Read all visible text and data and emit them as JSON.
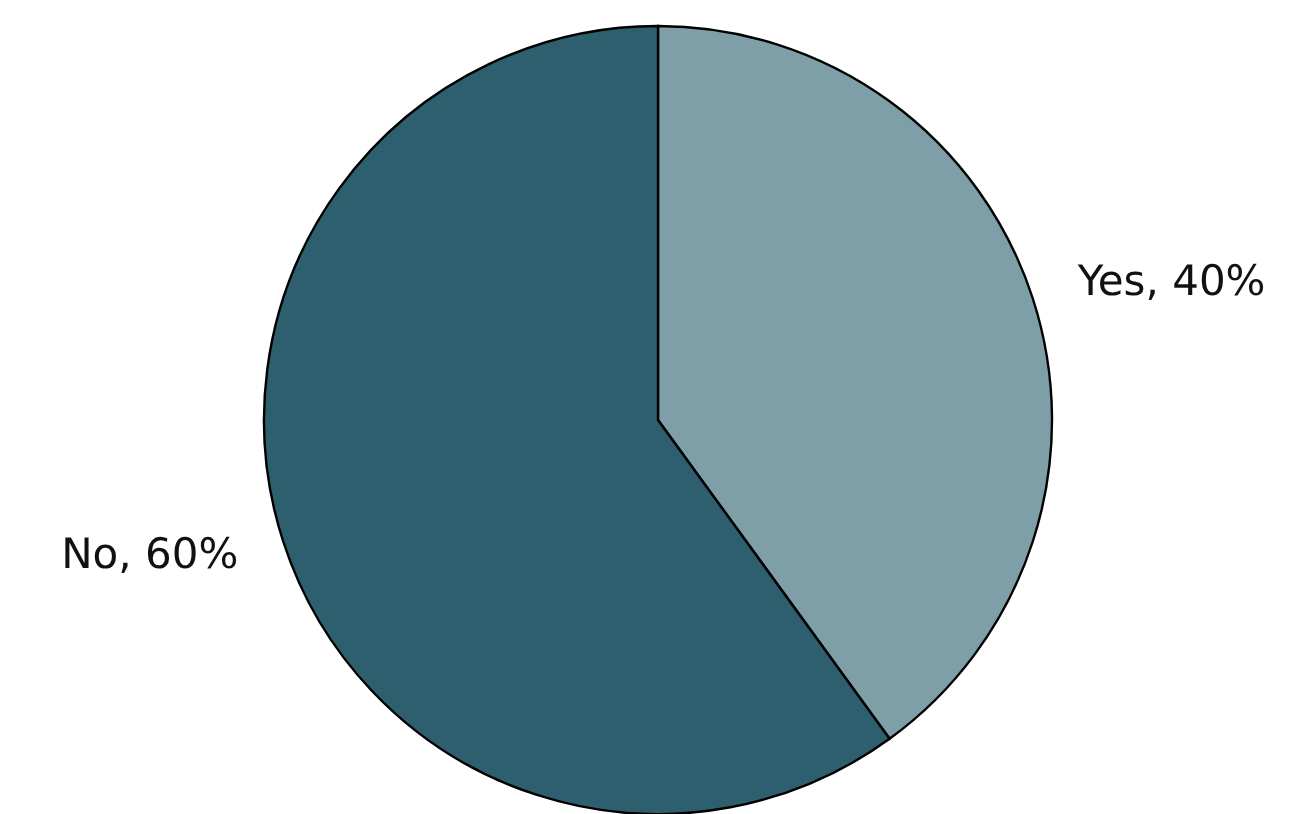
{
  "chart_data": {
    "type": "pie",
    "categories": [
      "Yes",
      "No"
    ],
    "values": [
      40,
      60
    ],
    "colors": [
      "#7e9ea8",
      "#2e5f6e"
    ],
    "value_labels": [
      "40%",
      "60%"
    ]
  }
}
